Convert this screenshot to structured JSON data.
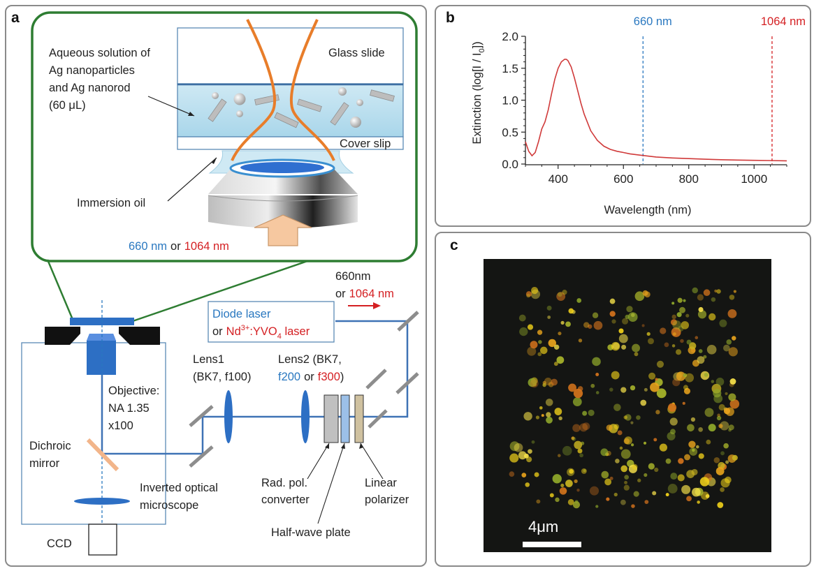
{
  "panels": {
    "a": "a",
    "b": "b",
    "c": "c"
  },
  "panel_a": {
    "inset": {
      "glass_slide": "Glass slide",
      "cover_slip": "Cover slip",
      "solution_lines": [
        "Aqueous solution of",
        "Ag nanoparticles",
        "and  Ag nanorod",
        "(60 μL)"
      ],
      "immersion_oil": "Immersion oil",
      "wavelength_660": "660 nm",
      "or": "or",
      "wavelength_1064": "1064  nm"
    },
    "setup": {
      "laser_660": "660nm",
      "laser_1064_prefix": "or",
      "laser_1064": "1064 nm",
      "diode_laser": "Diode laser",
      "nd_prefix": "or",
      "nd_laser_a": "Nd",
      "nd_laser_sup": "3+",
      "nd_laser_b": ":YVO",
      "nd_laser_sub": "4",
      "nd_laser_c": " laser",
      "lens1": [
        "Lens1",
        "(BK7, f100)"
      ],
      "lens2_line1": "Lens2 (BK7,",
      "lens2_f200": "f200",
      "lens2_or": "or",
      "lens2_f300": "f300",
      "lens2_close": ")",
      "objective": [
        "Objective:",
        "NA 1.35",
        "x100"
      ],
      "dichroic": [
        "Dichroic",
        "mirror"
      ],
      "microscope": [
        "Inverted optical",
        "microscope"
      ],
      "rad_pol": [
        "Rad. pol.",
        "converter"
      ],
      "half_wave": "Half-wave plate",
      "linear_pol": [
        "Linear",
        "polarizer"
      ],
      "ccd": "CCD"
    }
  },
  "chart_data": {
    "type": "line",
    "title": "",
    "xlabel": "Wavelength (nm)",
    "ylabel_prefix": "Extinction (log[I / I",
    "ylabel_sub": "0",
    "ylabel_suffix": "])",
    "xlim": [
      300,
      1100
    ],
    "ylim": [
      0,
      2.0
    ],
    "xticks": [
      "400",
      "600",
      "800",
      "1000"
    ],
    "yticks": [
      "0.0",
      "0.5",
      "1.0",
      "1.5",
      "2.0"
    ],
    "series": [
      {
        "color": "#d03a3a",
        "x": [
          300,
          310,
          320,
          330,
          340,
          350,
          360,
          370,
          380,
          390,
          400,
          410,
          420,
          425,
          430,
          440,
          450,
          460,
          470,
          480,
          500,
          520,
          540,
          560,
          580,
          600,
          620,
          650,
          700,
          750,
          800,
          850,
          900,
          950,
          1000,
          1050,
          1100
        ],
        "y": [
          0.35,
          0.2,
          0.13,
          0.18,
          0.35,
          0.55,
          0.66,
          0.85,
          1.1,
          1.33,
          1.5,
          1.6,
          1.64,
          1.64,
          1.62,
          1.52,
          1.35,
          1.15,
          0.95,
          0.78,
          0.52,
          0.37,
          0.28,
          0.23,
          0.2,
          0.18,
          0.16,
          0.14,
          0.11,
          0.095,
          0.085,
          0.075,
          0.068,
          0.062,
          0.058,
          0.055,
          0.05
        ]
      }
    ],
    "annotations": [
      {
        "x": 660,
        "label": "660 nm",
        "color": "#2a78c0"
      },
      {
        "x": 1055,
        "label": "1064  nm",
        "color": "#d41f22"
      }
    ]
  },
  "panel_c": {
    "scale_label": "4μm"
  }
}
